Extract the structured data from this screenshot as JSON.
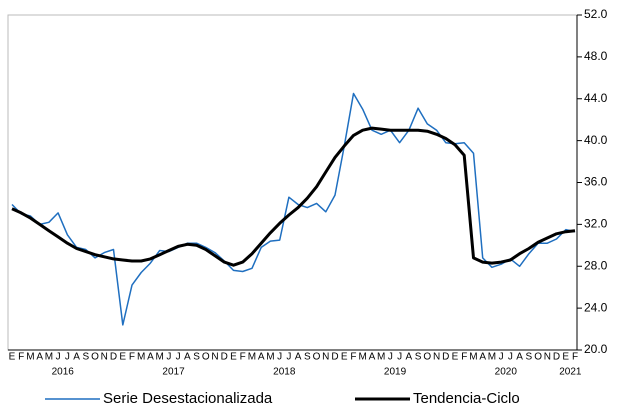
{
  "chart_data": {
    "type": "line",
    "categories": [
      "E",
      "F",
      "M",
      "A",
      "M",
      "J",
      "J",
      "A",
      "S",
      "O",
      "N",
      "D",
      "E",
      "F",
      "M",
      "A",
      "M",
      "J",
      "J",
      "A",
      "S",
      "O",
      "N",
      "D",
      "E",
      "F",
      "M",
      "A",
      "M",
      "J",
      "J",
      "A",
      "S",
      "O",
      "N",
      "D",
      "E",
      "F",
      "M",
      "A",
      "M",
      "J",
      "J",
      "A",
      "S",
      "O",
      "N",
      "D",
      "E",
      "F",
      "M",
      "A",
      "M",
      "J",
      "J",
      "A",
      "S",
      "O",
      "N",
      "D",
      "E",
      "F"
    ],
    "category_groups": [
      {
        "label": "2016",
        "size": 12
      },
      {
        "label": "2017",
        "size": 12
      },
      {
        "label": "2018",
        "size": 12
      },
      {
        "label": "2019",
        "size": 12
      },
      {
        "label": "2020",
        "size": 12
      },
      {
        "label": "2021",
        "size": 2
      }
    ],
    "series": [
      {
        "name": "Serie Desestacionalizada",
        "color": "#1f6fc0",
        "width": 1.5,
        "values": [
          33.9,
          33.0,
          32.8,
          32.0,
          32.2,
          33.1,
          31.0,
          29.8,
          29.6,
          28.8,
          29.3,
          29.6,
          22.4,
          26.2,
          27.4,
          28.3,
          29.5,
          29.4,
          29.8,
          30.2,
          30.2,
          29.8,
          29.3,
          28.5,
          27.6,
          27.5,
          27.8,
          29.8,
          30.4,
          30.5,
          34.6,
          33.9,
          33.6,
          34.0,
          33.2,
          34.8,
          39.5,
          44.5,
          43.0,
          41.0,
          40.6,
          41.0,
          39.8,
          41.0,
          43.1,
          41.6,
          41.0,
          39.8,
          39.7,
          39.8,
          38.8,
          28.8,
          27.9,
          28.2,
          28.7,
          28.0,
          29.2,
          30.2,
          30.2,
          30.6,
          31.5,
          31.3
        ]
      },
      {
        "name": "Tendencia-Ciclo",
        "color": "#000000",
        "width": 3,
        "values": [
          33.5,
          33.1,
          32.6,
          32.0,
          31.4,
          30.8,
          30.2,
          29.7,
          29.4,
          29.1,
          28.9,
          28.7,
          28.6,
          28.5,
          28.5,
          28.7,
          29.1,
          29.5,
          29.9,
          30.1,
          30.0,
          29.6,
          29.0,
          28.4,
          28.1,
          28.4,
          29.2,
          30.2,
          31.2,
          32.1,
          32.9,
          33.6,
          34.5,
          35.6,
          37.0,
          38.4,
          39.5,
          40.5,
          41.0,
          41.2,
          41.1,
          41.0,
          41.0,
          41.0,
          41.0,
          40.9,
          40.6,
          40.2,
          39.6,
          38.6,
          28.8,
          28.4,
          28.3,
          28.4,
          28.6,
          29.2,
          29.7,
          30.3,
          30.7,
          31.1,
          31.3,
          31.4
        ]
      }
    ],
    "ylim": [
      20,
      52
    ],
    "yticks": [
      {
        "value": 20,
        "label": "20.0"
      },
      {
        "value": 24,
        "label": "24.0"
      },
      {
        "value": 28,
        "label": "28.0"
      },
      {
        "value": 32,
        "label": "32.0"
      },
      {
        "value": 36,
        "label": "36.0"
      },
      {
        "value": 40,
        "label": "40.0"
      },
      {
        "value": 44,
        "label": "44.0"
      },
      {
        "value": 48,
        "label": "48.0"
      },
      {
        "value": 52,
        "label": "52.0"
      }
    ],
    "y_axis_side": "right",
    "grid": false,
    "legend": "bottom"
  }
}
